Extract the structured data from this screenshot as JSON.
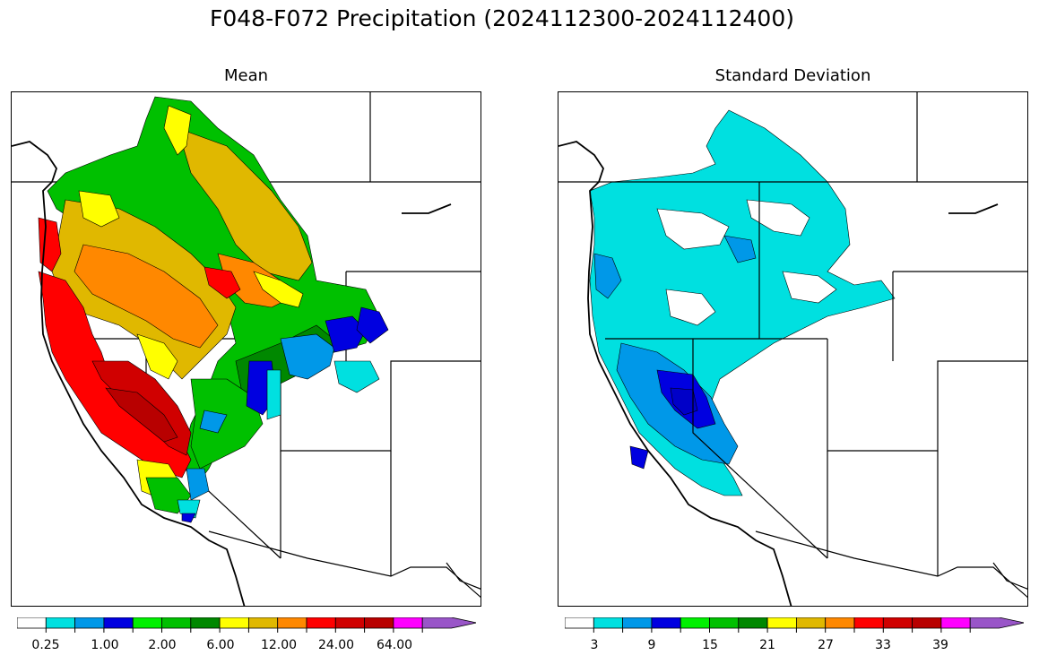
{
  "figure": {
    "title": "F048-F072 Precipitation (2024112300-2024112400)"
  },
  "panels": [
    {
      "title": "Mean",
      "colorbar": {
        "colors": [
          "#ffffff",
          "#00e0e0",
          "#0098e8",
          "#0000e0",
          "#00f000",
          "#00c000",
          "#008800",
          "#ffff00",
          "#e0b800",
          "#ff8800",
          "#ff0000",
          "#d00000",
          "#b80000",
          "#ff00ff",
          "#9955c8"
        ],
        "tick_labels": [
          "0.25",
          "1.00",
          "2.00",
          "6.00",
          "12.00",
          "24.00",
          "64.00"
        ],
        "extend": "max"
      }
    },
    {
      "title": "Standard Deviation",
      "colorbar": {
        "colors": [
          "#ffffff",
          "#00e0e0",
          "#0098e8",
          "#0000e0",
          "#00f000",
          "#00c000",
          "#008800",
          "#ffff00",
          "#e0b800",
          "#ff8800",
          "#ff0000",
          "#d00000",
          "#b80000",
          "#ff00ff",
          "#9955c8"
        ],
        "tick_labels": [
          "3",
          "9",
          "15",
          "21",
          "27",
          "33",
          "39"
        ],
        "extend": "max"
      }
    }
  ]
}
